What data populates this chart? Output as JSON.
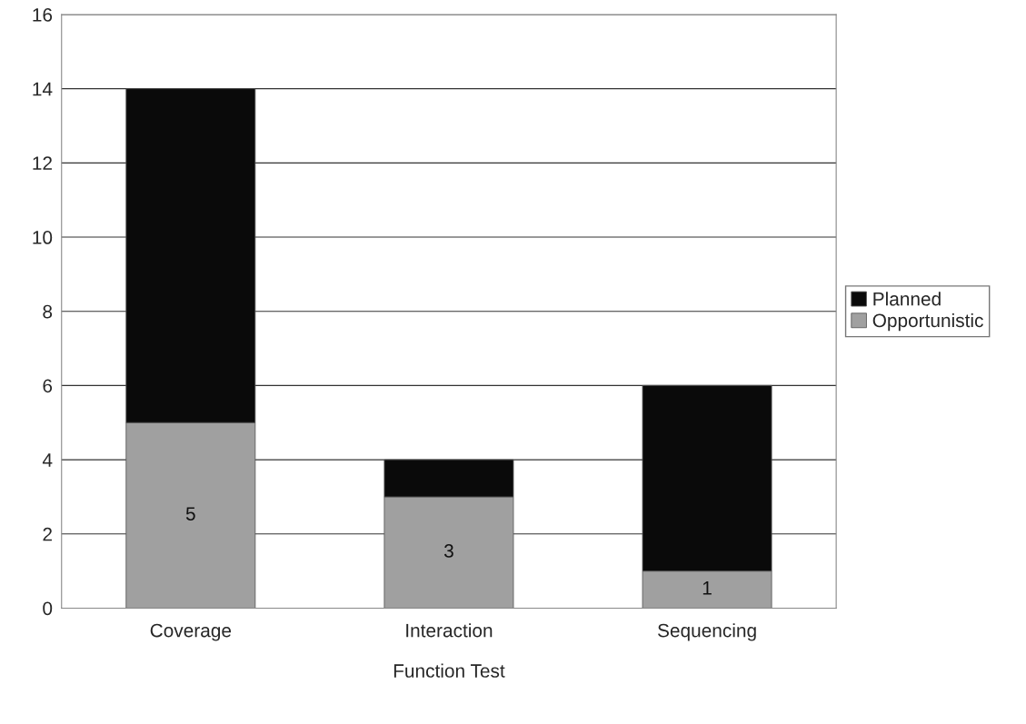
{
  "chart_data": {
    "type": "bar",
    "stacked": true,
    "xlabel": "Function Test",
    "categories": [
      "Coverage",
      "Interaction",
      "Sequencing"
    ],
    "series": [
      {
        "name": "Opportunistic",
        "color": "#a0a0a0",
        "values": [
          5,
          3,
          1
        ],
        "value_labels": [
          "5",
          "3",
          "1"
        ]
      },
      {
        "name": "Planned",
        "color": "#0a0a0a",
        "values": [
          9,
          1,
          5
        ]
      }
    ],
    "ylim": [
      0,
      16
    ],
    "yticks": [
      0,
      2,
      4,
      6,
      8,
      10,
      12,
      14,
      16
    ],
    "grid": "y",
    "legend": "right"
  }
}
